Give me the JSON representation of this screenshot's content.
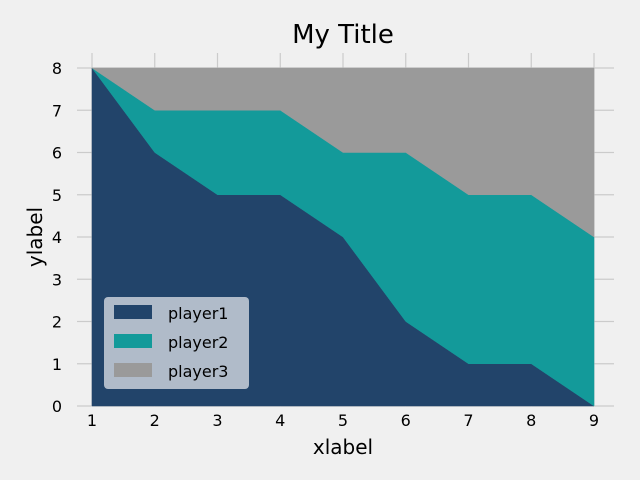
{
  "chart_data": {
    "type": "area",
    "stacked": true,
    "title": "My Title",
    "xlabel": "xlabel",
    "ylabel": "ylabel",
    "x": [
      1,
      2,
      3,
      4,
      5,
      6,
      7,
      8,
      9
    ],
    "xlim": [
      1,
      9
    ],
    "ylim": [
      0,
      8
    ],
    "xticks": [
      1,
      2,
      3,
      4,
      5,
      6,
      7,
      8,
      9
    ],
    "yticks": [
      0,
      1,
      2,
      3,
      4,
      5,
      6,
      7,
      8
    ],
    "grid": true,
    "legend_position": "lower-left",
    "series": [
      {
        "name": "player1",
        "color": "#22446a",
        "values": [
          8,
          6,
          5,
          5,
          4,
          2,
          1,
          1,
          0
        ]
      },
      {
        "name": "player2",
        "color": "#139a9a",
        "values": [
          0,
          1,
          2,
          2,
          2,
          4,
          4,
          4,
          4
        ]
      },
      {
        "name": "player3",
        "color": "#9a9a9a",
        "values": [
          0,
          1,
          1,
          1,
          2,
          2,
          3,
          3,
          4
        ]
      }
    ]
  },
  "style": {
    "background": "#f0f0f0",
    "grid_color": "#cbcbcb",
    "legend_background": "#c9d0d9"
  }
}
